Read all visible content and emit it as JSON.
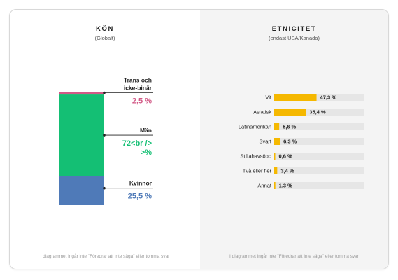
{
  "left_panel": {
    "title": "KÖN",
    "subtitle": "(Globalt)",
    "footnote": "I diagrammet ingår inte \"Föredrar att inte säga\" eller tomma svar"
  },
  "right_panel": {
    "title": "ETNICITET",
    "subtitle": "(endast USA/Kanada)",
    "footnote": "I diagrammet ingår inte \"Föredrar att inte säga\" eller tomma svar"
  },
  "chart_data": [
    {
      "type": "bar",
      "stacked": true,
      "title": "KÖN",
      "subtitle": "(Globalt)",
      "series": [
        {
          "name_lines": [
            "Kvinnor"
          ],
          "value": 25.5,
          "value_lines": [
            "25,5 %"
          ],
          "color": "#4f7ab8"
        },
        {
          "name_lines": [
            "Män"
          ],
          "value": 72,
          "value_lines": [
            "72<br />",
            ">%"
          ],
          "color": "#14bf74"
        },
        {
          "name_lines": [
            "Trans och",
            "icke-binär"
          ],
          "value": 2.5,
          "value_lines": [
            "2,5 %"
          ],
          "color": "#d25986"
        }
      ]
    },
    {
      "type": "bar",
      "orientation": "horizontal",
      "title": "ETNICITET",
      "subtitle": "(endast USA/Kanada)",
      "bar_color": "#f5b800",
      "track_color": "#e6e6e6",
      "xlim": [
        0,
        100
      ],
      "categories": [
        "Vit",
        "Asiatisk",
        "Latinamerikan",
        "Svart",
        "Stillahavsöbo",
        "Två eller fler",
        "Annat"
      ],
      "values": [
        47.3,
        35.4,
        5.6,
        6.3,
        0.6,
        3.4,
        1.3
      ],
      "value_labels": [
        "47,3 %",
        "35,4 %",
        "5,6 %",
        "6,3 %",
        "0,6 %",
        "3,4 %",
        "1,3 %"
      ]
    }
  ]
}
